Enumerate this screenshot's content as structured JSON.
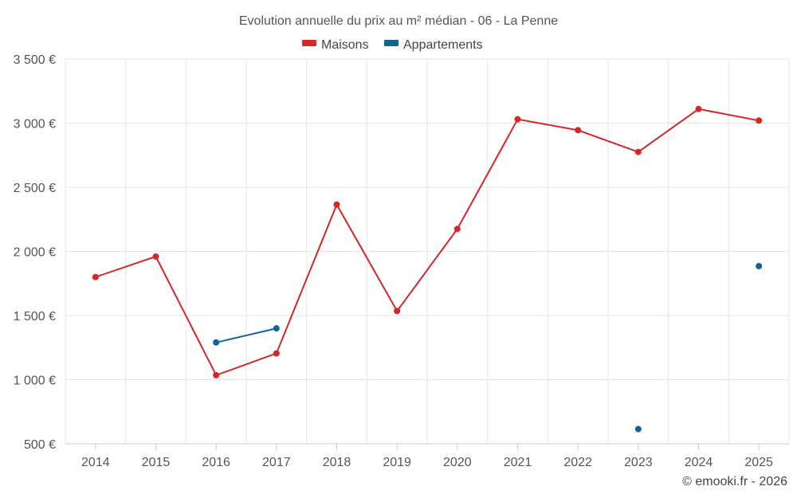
{
  "chart_data": {
    "type": "line",
    "title": "Evolution annuelle du prix au m² médian - 06 - La Penne",
    "xlabel": "",
    "ylabel": "",
    "categories": [
      "2014",
      "2015",
      "2016",
      "2017",
      "2018",
      "2019",
      "2020",
      "2021",
      "2022",
      "2023",
      "2024",
      "2025"
    ],
    "ylim": [
      500,
      3500
    ],
    "yticks": [
      500,
      1000,
      1500,
      2000,
      2500,
      3000,
      3500
    ],
    "ytick_labels": [
      "500 €",
      "1 000 €",
      "1 500 €",
      "2 000 €",
      "2 500 €",
      "3 000 €",
      "3 500 €"
    ],
    "grid": true,
    "legend_position": "top-center",
    "series": [
      {
        "name": "Maisons",
        "color": "#d62728",
        "values": [
          1800,
          1960,
          1035,
          1205,
          2365,
          1535,
          2175,
          3030,
          2945,
          2775,
          3110,
          3020
        ]
      },
      {
        "name": "Appartements",
        "color": "#0e6399",
        "values": [
          null,
          null,
          1290,
          1400,
          null,
          null,
          null,
          null,
          null,
          615,
          null,
          1885
        ]
      }
    ]
  },
  "credit": "© emooki.fr - 2026"
}
